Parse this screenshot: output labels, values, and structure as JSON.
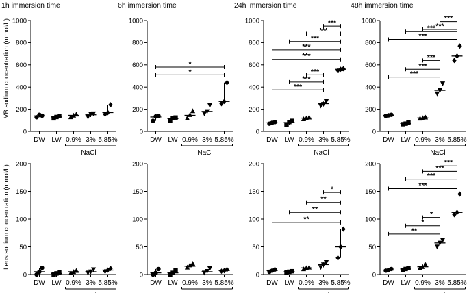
{
  "figure": {
    "y_labels": [
      "VB sodium concentration (mmol/L)",
      "Lens sodium concentration (mmol/L)"
    ],
    "group_label": "NaCl"
  },
  "chart_data": [
    {
      "type": "scatter",
      "title": "1h immersion time",
      "ylabel": "VB sodium concentration (mmol/L)",
      "ylim": [
        0,
        1000
      ],
      "yticks": [
        0,
        200,
        400,
        600,
        800,
        1000
      ],
      "categories": [
        "DW",
        "LW",
        "0.9%",
        "3%",
        "5.85%"
      ],
      "markers": [
        "circle",
        "square",
        "triangle",
        "inverted-triangle",
        "diamond"
      ],
      "points": [
        [
          128,
          150,
          142
        ],
        [
          118,
          130,
          138
        ],
        [
          130,
          145,
          155
        ],
        [
          130,
          158,
          160
        ],
        [
          155,
          170,
          240
        ]
      ],
      "means": [
        140,
        130,
        145,
        150,
        170
      ],
      "significance": []
    },
    {
      "type": "scatter",
      "title": "6h immersion time",
      "ylim": [
        0,
        1000
      ],
      "yticks": [
        0,
        200,
        400,
        600,
        800,
        1000
      ],
      "categories": [
        "DW",
        "LW",
        "0.9%",
        "3%",
        "5.85%"
      ],
      "markers": [
        "circle",
        "square",
        "triangle",
        "inverted-triangle",
        "diamond"
      ],
      "points": [
        [
          95,
          135,
          140
        ],
        [
          100,
          120,
          125
        ],
        [
          120,
          150,
          185
        ],
        [
          160,
          180,
          235
        ],
        [
          250,
          270,
          440
        ]
      ],
      "means": [
        130,
        115,
        145,
        180,
        270
      ],
      "significance": [
        {
          "from": 0,
          "to": 4,
          "label": "*",
          "y": 580
        },
        {
          "from": 0,
          "to": 4,
          "label": "*",
          "y": 510
        }
      ]
    },
    {
      "type": "scatter",
      "title": "24h immersion time",
      "ylim": [
        0,
        1000
      ],
      "yticks": [
        0,
        200,
        400,
        600,
        800,
        1000
      ],
      "categories": [
        "DW",
        "LW",
        "0.9%",
        "3%",
        "5.85%"
      ],
      "markers": [
        "circle",
        "square",
        "triangle",
        "inverted-triangle",
        "diamond"
      ],
      "points": [
        [
          70,
          78,
          84
        ],
        [
          60,
          85,
          95
        ],
        [
          112,
          120,
          128
        ],
        [
          230,
          245,
          270
        ],
        [
          550,
          560,
          565
        ]
      ],
      "means": [
        78,
        80,
        120,
        250,
        560
      ],
      "significance": [
        {
          "from": 3,
          "to": 4,
          "label": "***",
          "y": 950
        },
        {
          "from": 2,
          "to": 4,
          "label": "***",
          "y": 880
        },
        {
          "from": 1,
          "to": 4,
          "label": "***",
          "y": 810
        },
        {
          "from": 0,
          "to": 4,
          "label": "***",
          "y": 735
        },
        {
          "from": 0,
          "to": 4,
          "label": "***",
          "y": 650
        },
        {
          "from": 2,
          "to": 3,
          "label": "***",
          "y": 510
        },
        {
          "from": 1,
          "to": 3,
          "label": "***",
          "y": 445
        },
        {
          "from": 0,
          "to": 3,
          "label": "***",
          "y": 375
        }
      ]
    },
    {
      "type": "scatter",
      "title": "48h immersion time",
      "ylim": [
        0,
        1000
      ],
      "yticks": [
        0,
        200,
        400,
        600,
        800,
        1000
      ],
      "categories": [
        "DW",
        "LW",
        "0.9%",
        "3%",
        "5.85%"
      ],
      "markers": [
        "circle",
        "square",
        "triangle",
        "inverted-triangle",
        "diamond"
      ],
      "points": [
        [
          140,
          145,
          150
        ],
        [
          65,
          70,
          80
        ],
        [
          118,
          122,
          128
        ],
        [
          340,
          370,
          430
        ],
        [
          640,
          680,
          770
        ]
      ],
      "means": [
        145,
        72,
        122,
        370,
        680
      ],
      "significance": [
        {
          "from": 3,
          "to": 4,
          "label": "***",
          "y": 990
        },
        {
          "from": 2,
          "to": 4,
          "label": "***",
          "y": 920
        },
        {
          "from": 1,
          "to": 4,
          "label": "***",
          "y": 900
        },
        {
          "from": 0,
          "to": 4,
          "label": "***",
          "y": 830
        },
        {
          "from": 2,
          "to": 3,
          "label": "***",
          "y": 640
        },
        {
          "from": 1,
          "to": 3,
          "label": "***",
          "y": 560
        },
        {
          "from": 0,
          "to": 3,
          "label": "***",
          "y": 490
        }
      ]
    },
    {
      "type": "scatter",
      "ylabel": "Lens sodium concentration (mmol/L)",
      "ylim": [
        0,
        200
      ],
      "yticks": [
        0,
        50,
        100,
        150,
        200
      ],
      "categories": [
        "DW",
        "LW",
        "0.9%",
        "3%",
        "5.85%"
      ],
      "markers": [
        "circle",
        "square",
        "triangle",
        "inverted-triangle",
        "diamond"
      ],
      "points": [
        [
          0,
          5,
          12
        ],
        [
          0,
          2,
          4
        ],
        [
          3,
          5,
          7
        ],
        [
          3,
          5,
          9
        ],
        [
          6,
          8,
          11
        ]
      ],
      "means": [
        5,
        2,
        5,
        5,
        8
      ],
      "significance": []
    },
    {
      "type": "scatter",
      "ylim": [
        0,
        200
      ],
      "yticks": [
        0,
        50,
        100,
        150,
        200
      ],
      "categories": [
        "DW",
        "LW",
        "0.9%",
        "3%",
        "5.85%"
      ],
      "markers": [
        "circle",
        "square",
        "triangle",
        "inverted-triangle",
        "diamond"
      ],
      "points": [
        [
          0,
          3,
          10
        ],
        [
          0,
          3,
          8
        ],
        [
          13,
          17,
          20
        ],
        [
          3,
          6,
          11
        ],
        [
          6,
          7,
          9
        ]
      ],
      "means": [
        3,
        3,
        15,
        5,
        7
      ],
      "significance": []
    },
    {
      "type": "scatter",
      "ylim": [
        0,
        200
      ],
      "yticks": [
        0,
        50,
        100,
        150,
        200
      ],
      "categories": [
        "DW",
        "LW",
        "0.9%",
        "3%",
        "5.85%"
      ],
      "markers": [
        "circle",
        "square",
        "triangle",
        "inverted-triangle",
        "diamond"
      ],
      "points": [
        [
          5,
          7,
          9
        ],
        [
          4,
          5,
          6
        ],
        [
          10,
          12,
          13
        ],
        [
          13,
          18,
          22
        ],
        [
          30,
          50,
          82
        ]
      ],
      "means": [
        7,
        5,
        12,
        18,
        50
      ],
      "significance": [
        {
          "from": 3,
          "to": 4,
          "label": "*",
          "y": 148
        },
        {
          "from": 2,
          "to": 4,
          "label": "**",
          "y": 130
        },
        {
          "from": 1,
          "to": 4,
          "label": "**",
          "y": 112
        },
        {
          "from": 0,
          "to": 4,
          "label": "**",
          "y": 94
        }
      ]
    },
    {
      "type": "scatter",
      "ylim": [
        0,
        200
      ],
      "yticks": [
        0,
        50,
        100,
        150,
        200
      ],
      "categories": [
        "DW",
        "LW",
        "0.9%",
        "3%",
        "5.85%"
      ],
      "markers": [
        "circle",
        "square",
        "triangle",
        "inverted-triangle",
        "diamond"
      ],
      "points": [
        [
          7,
          8,
          10
        ],
        [
          8,
          10,
          12
        ],
        [
          12,
          14,
          18
        ],
        [
          50,
          57,
          62
        ],
        [
          108,
          112,
          145
        ]
      ],
      "means": [
        8,
        10,
        14,
        57,
        112
      ],
      "significance": [
        {
          "from": 3,
          "to": 4,
          "label": "***",
          "y": 196
        },
        {
          "from": 2,
          "to": 4,
          "label": "***",
          "y": 186
        },
        {
          "from": 1,
          "to": 4,
          "label": "***",
          "y": 172
        },
        {
          "from": 0,
          "to": 4,
          "label": "***",
          "y": 155
        },
        {
          "from": 2,
          "to": 3,
          "label": "*",
          "y": 103
        },
        {
          "from": 1,
          "to": 3,
          "label": "*",
          "y": 88
        },
        {
          "from": 0,
          "to": 3,
          "label": "**",
          "y": 73
        }
      ]
    }
  ]
}
